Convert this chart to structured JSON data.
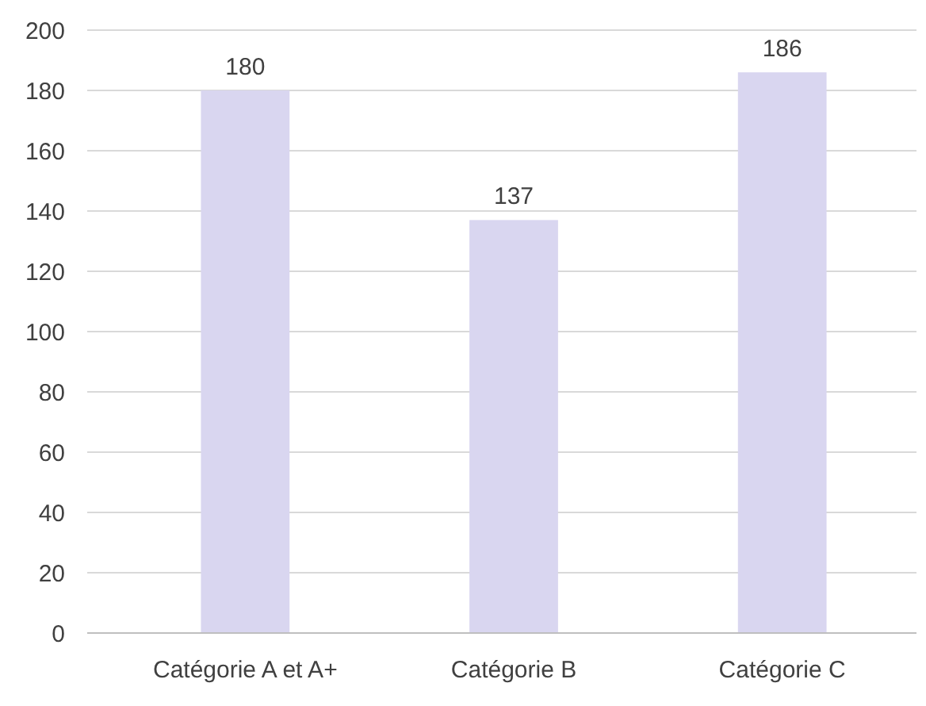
{
  "chart_data": {
    "type": "bar",
    "categories": [
      "Catégorie A et A+",
      "Catégorie B",
      "Catégorie C"
    ],
    "values": [
      180,
      137,
      186
    ],
    "color": "#d9d6f0",
    "ylim": [
      0,
      200
    ],
    "yticks": [
      0,
      20,
      40,
      60,
      80,
      100,
      120,
      140,
      160,
      180,
      200
    ],
    "grid": "y",
    "data_labels": true
  }
}
